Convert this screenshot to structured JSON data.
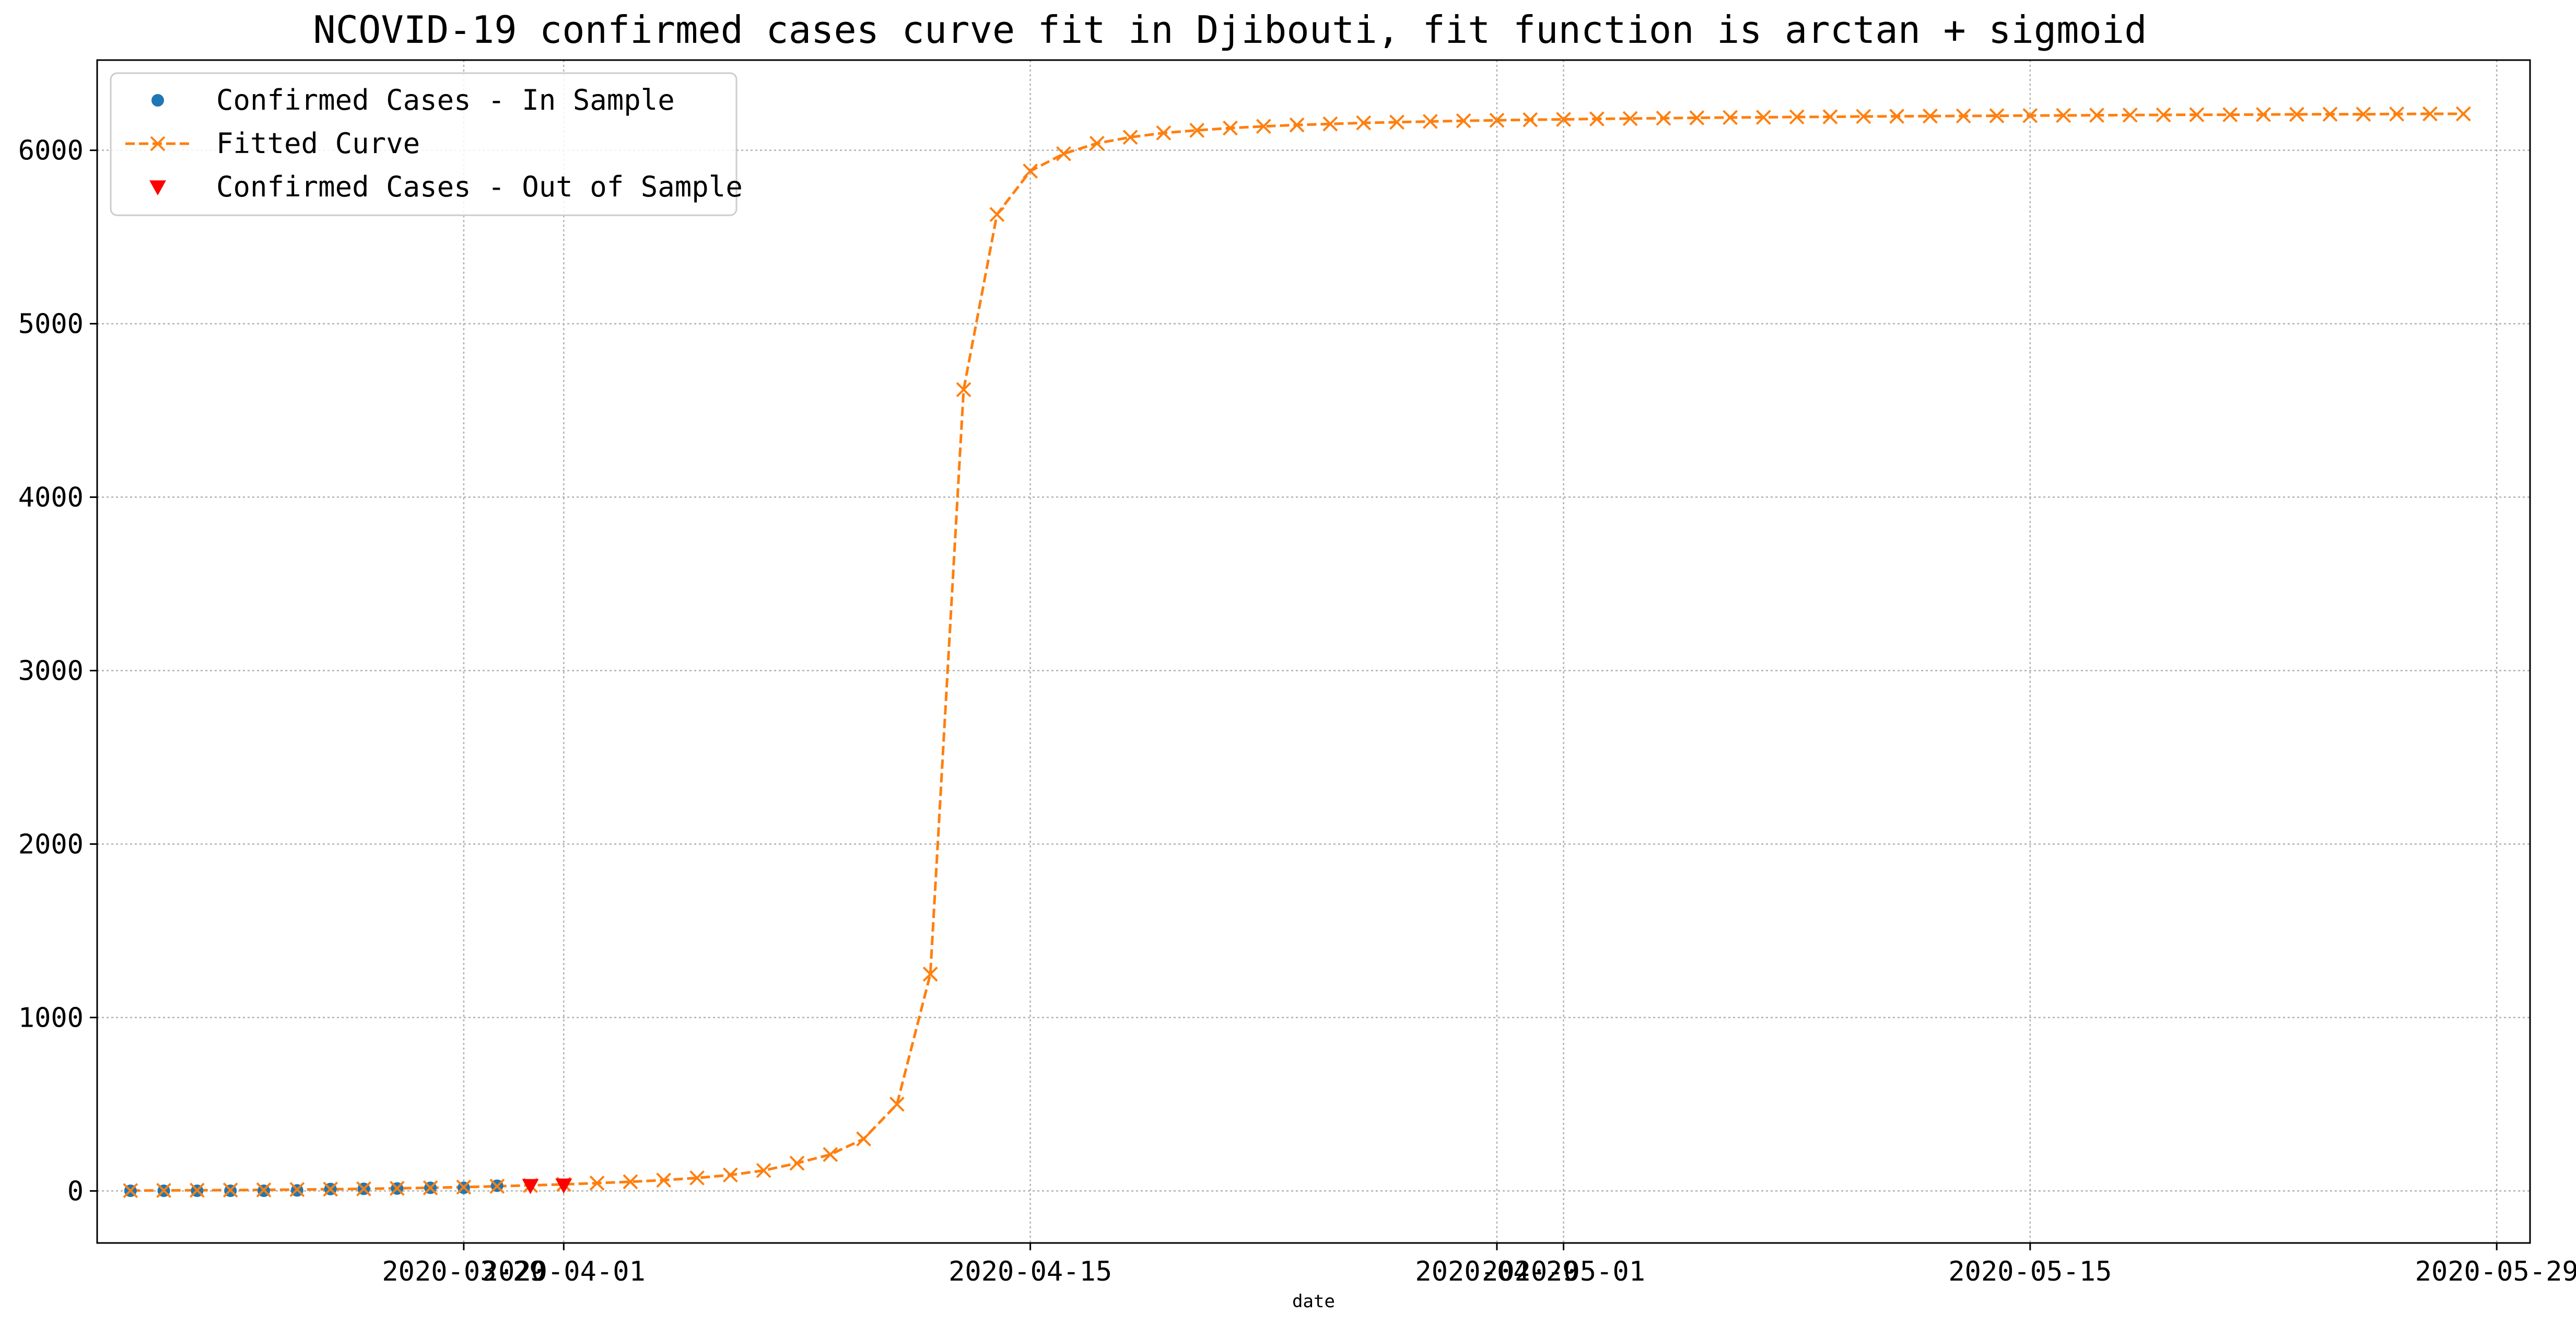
{
  "chart_data": {
    "type": "line",
    "title": "NCOVID-19 confirmed cases curve fit in Djibouti, fit function is arctan + sigmoid",
    "xlabel": "date",
    "ylabel": "",
    "grid": true,
    "legend_position": "top-left",
    "xlim": [
      "2020-03-18",
      "2020-05-30"
    ],
    "ylim": [
      -300,
      6520
    ],
    "x_ticks": [
      "2020-03-29",
      "2020-04-01",
      "2020-04-15",
      "2020-04-29",
      "2020-05-01",
      "2020-05-15",
      "2020-05-29"
    ],
    "x_tick_labels": [
      "2020-03-29",
      "2020-04-01",
      "2020-04-15",
      "2020-04-29",
      "2020-05-01",
      "2020-05-15",
      "2020-05-29"
    ],
    "y_ticks": [
      0,
      1000,
      2000,
      3000,
      4000,
      5000,
      6000
    ],
    "y_tick_labels": [
      "0",
      "1000",
      "2000",
      "3000",
      "4000",
      "5000",
      "6000"
    ],
    "series": [
      {
        "name": "Confirmed Cases - In Sample",
        "style": "markers",
        "marker": "circle",
        "color": "#1f77b4",
        "x": [
          "2020-03-19",
          "2020-03-20",
          "2020-03-21",
          "2020-03-22",
          "2020-03-23",
          "2020-03-24",
          "2020-03-25",
          "2020-03-26",
          "2020-03-27",
          "2020-03-28",
          "2020-03-29",
          "2020-03-30"
        ],
        "y": [
          1,
          1,
          1,
          1,
          1,
          3,
          11,
          12,
          14,
          18,
          18,
          30
        ]
      },
      {
        "name": "Fitted Curve",
        "style": "dashed-line-markers",
        "marker": "x",
        "color": "#ff7f0e",
        "x": [
          "2020-03-19",
          "2020-03-20",
          "2020-03-21",
          "2020-03-22",
          "2020-03-23",
          "2020-03-24",
          "2020-03-25",
          "2020-03-26",
          "2020-03-27",
          "2020-03-28",
          "2020-03-29",
          "2020-03-30",
          "2020-03-31",
          "2020-04-01",
          "2020-04-02",
          "2020-04-03",
          "2020-04-04",
          "2020-04-05",
          "2020-04-06",
          "2020-04-07",
          "2020-04-08",
          "2020-04-09",
          "2020-04-10",
          "2020-04-11",
          "2020-04-12",
          "2020-04-13",
          "2020-04-14",
          "2020-04-15",
          "2020-04-16",
          "2020-04-17",
          "2020-04-18",
          "2020-04-19",
          "2020-04-20",
          "2020-04-21",
          "2020-04-22",
          "2020-04-23",
          "2020-04-24",
          "2020-04-25",
          "2020-04-26",
          "2020-04-27",
          "2020-04-28",
          "2020-04-29",
          "2020-04-30",
          "2020-05-01",
          "2020-05-02",
          "2020-05-03",
          "2020-05-04",
          "2020-05-05",
          "2020-05-06",
          "2020-05-07",
          "2020-05-08",
          "2020-05-09",
          "2020-05-10",
          "2020-05-11",
          "2020-05-12",
          "2020-05-13",
          "2020-05-14",
          "2020-05-15",
          "2020-05-16",
          "2020-05-17",
          "2020-05-18",
          "2020-05-19",
          "2020-05-20",
          "2020-05-21",
          "2020-05-22",
          "2020-05-23",
          "2020-05-24",
          "2020-05-25",
          "2020-05-26",
          "2020-05-27",
          "2020-05-28"
        ],
        "y": [
          2,
          3,
          4,
          5,
          6,
          8,
          10,
          12,
          15,
          18,
          22,
          27,
          32,
          38,
          45,
          53,
          62,
          75,
          92,
          118,
          160,
          210,
          300,
          500,
          1250,
          4620,
          5630,
          5880,
          5980,
          6040,
          6075,
          6100,
          6115,
          6128,
          6138,
          6146,
          6152,
          6158,
          6162,
          6166,
          6170,
          6173,
          6176,
          6178,
          6181,
          6183,
          6185,
          6187,
          6189,
          6190,
          6192,
          6193,
          6195,
          6196,
          6197,
          6198,
          6199,
          6200,
          6201,
          6202,
          6203,
          6204,
          6205,
          6205,
          6206,
          6207,
          6208,
          6208,
          6209,
          6210,
          6210
        ]
      },
      {
        "name": "Confirmed Cases - Out of Sample",
        "style": "markers",
        "marker": "triangle-down",
        "color": "#ff0000",
        "x": [
          "2020-03-31",
          "2020-04-01"
        ],
        "y": [
          30,
          33
        ]
      }
    ]
  }
}
